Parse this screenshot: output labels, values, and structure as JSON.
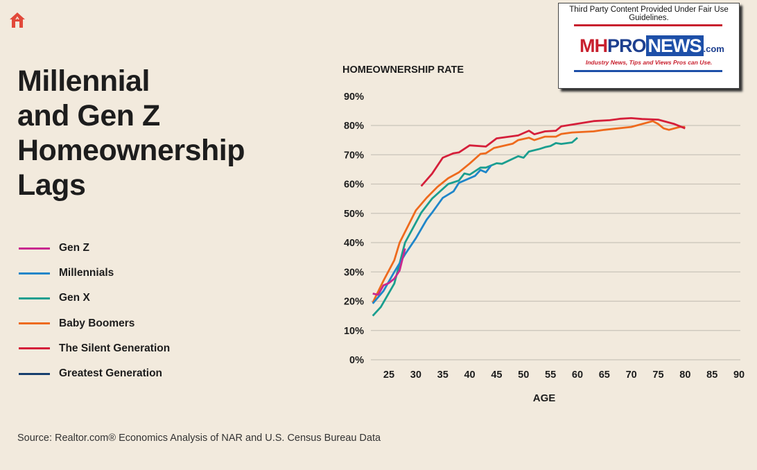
{
  "title_lines": [
    "Millennial",
    "and Gen Z",
    "Homeownership",
    "Lags"
  ],
  "source": "Source: Realtor.com® Economics Analysis of NAR and U.S. Census Bureau Data",
  "badge": {
    "fair_use": "Third Party Content Provided Under Fair Use Guidelines.",
    "logo_mh": "MH",
    "logo_pro": "PRO",
    "logo_news": "NEWS",
    "logo_com": ".com",
    "tagline": "Industry News, Tips and Views Pros can Use."
  },
  "icons": {
    "home": "home-icon"
  },
  "chart_data": {
    "type": "line",
    "title": "HOMEOWNERSHIP RATE",
    "xlabel": "AGE",
    "ylabel": "",
    "xlim": [
      22,
      90
    ],
    "ylim": [
      0,
      90
    ],
    "xticks": [
      25,
      30,
      35,
      40,
      45,
      50,
      55,
      60,
      65,
      70,
      75,
      80,
      85,
      90
    ],
    "yticks": [
      0,
      10,
      20,
      30,
      40,
      50,
      60,
      70,
      80,
      90
    ],
    "ytick_labels": [
      "0%",
      "10%",
      "20%",
      "30%",
      "40%",
      "50%",
      "60%",
      "70%",
      "80%",
      "90%"
    ],
    "grid": "horizontal",
    "legend": "left",
    "series": [
      {
        "name": "Gen Z",
        "color": "#c8288f",
        "x": [
          22,
          23,
          24,
          25,
          26,
          27,
          28
        ],
        "y": [
          22.6,
          22.2,
          25.4,
          26.2,
          27.7,
          30.5,
          38
        ]
      },
      {
        "name": "Millennials",
        "color": "#1f86c9",
        "x": [
          22,
          24,
          26,
          28,
          30,
          32,
          33,
          35,
          37,
          38,
          41,
          42,
          43,
          44
        ],
        "y": [
          19.2,
          23.5,
          30,
          36,
          41.5,
          47.8,
          50.2,
          55.3,
          57.5,
          60.4,
          62.8,
          64.8,
          64,
          66.4
        ]
      },
      {
        "name": "Gen X",
        "color": "#1a9e8f",
        "x": [
          22,
          23.5,
          26,
          28,
          31,
          33,
          36,
          38,
          39,
          40,
          42,
          43,
          45,
          46,
          49,
          50,
          51,
          53,
          54,
          55,
          56,
          57,
          59,
          60
        ],
        "y": [
          15,
          18,
          26,
          40,
          50.2,
          55,
          60,
          61.2,
          63.6,
          63.2,
          65.6,
          65.6,
          67.1,
          66.9,
          69.5,
          69,
          71.1,
          72,
          72.6,
          73,
          74,
          73.7,
          74.2,
          75.8
        ]
      },
      {
        "name": "Baby Boomers",
        "color": "#ee6a1d",
        "x": [
          22,
          24,
          26,
          27,
          30,
          32,
          34,
          36,
          38,
          40,
          42,
          43,
          44.5,
          48,
          49,
          51,
          52,
          54,
          56,
          57,
          59,
          63,
          65,
          70,
          74,
          75,
          76,
          77,
          79,
          80
        ],
        "y": [
          19.5,
          27,
          34,
          40,
          51,
          55.3,
          59,
          62,
          64,
          67,
          70.3,
          70.5,
          72.3,
          73.8,
          75,
          75.8,
          75,
          76.2,
          76.2,
          77.1,
          77.6,
          78,
          78.5,
          79.5,
          81.5,
          80.5,
          79,
          78.5,
          79.5,
          79.5
        ]
      },
      {
        "name": "The Silent Generation",
        "color": "#d51f3a",
        "x": [
          31,
          33,
          35,
          37,
          38,
          40,
          43,
          45,
          49,
          51,
          52,
          54,
          56,
          57,
          60,
          63,
          66,
          68,
          70,
          72,
          75,
          78,
          80
        ],
        "y": [
          59.3,
          63.5,
          69,
          70.5,
          70.8,
          73.2,
          72.8,
          75.6,
          76.6,
          78.2,
          77,
          78,
          78.2,
          79.7,
          80.6,
          81.5,
          81.8,
          82.3,
          82.5,
          82.2,
          82,
          80.5,
          79
        ]
      },
      {
        "name": "Greatest Generation",
        "color": "#173f6e",
        "x": [],
        "y": []
      }
    ]
  }
}
